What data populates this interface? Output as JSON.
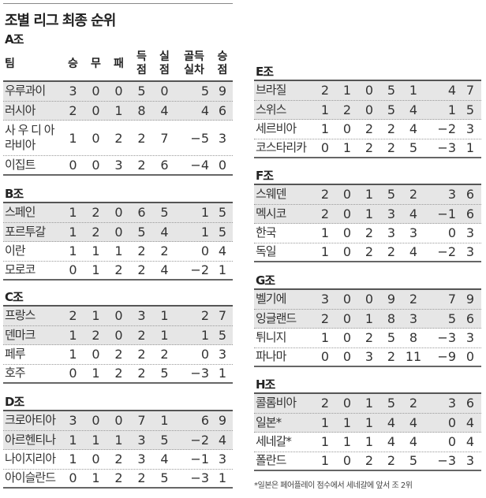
{
  "title": "조별 리그 최종 순위",
  "columns": [
    "팀",
    "승",
    "무",
    "패",
    "득\n점",
    "실\n점",
    "골득\n실차",
    "승\n점"
  ],
  "groups": [
    {
      "label": "A조",
      "teams": [
        [
          "우루과이",
          "3",
          "0",
          "0",
          "5",
          "0",
          "5",
          "9"
        ],
        [
          "러시아",
          "2",
          "0",
          "1",
          "8",
          "4",
          "4",
          "6"
        ],
        [
          "사 우 디 아\n라비아",
          "1",
          "0",
          "2",
          "2",
          "7",
          "−5",
          "3"
        ],
        [
          "이집트",
          "0",
          "0",
          "3",
          "2",
          "6",
          "−4",
          "0"
        ]
      ]
    },
    {
      "label": "B조",
      "teams": [
        [
          "스페인",
          "1",
          "2",
          "0",
          "6",
          "5",
          "1",
          "5"
        ],
        [
          "포르투갈",
          "1",
          "2",
          "0",
          "5",
          "4",
          "1",
          "5"
        ],
        [
          "이란",
          "1",
          "1",
          "1",
          "2",
          "2",
          "0",
          "4"
        ],
        [
          "모로코",
          "0",
          "1",
          "2",
          "2",
          "4",
          "−2",
          "1"
        ]
      ]
    },
    {
      "label": "C조",
      "teams": [
        [
          "프랑스",
          "2",
          "1",
          "0",
          "3",
          "1",
          "2",
          "7"
        ],
        [
          "덴마크",
          "1",
          "2",
          "0",
          "2",
          "1",
          "1",
          "5"
        ],
        [
          "페루",
          "1",
          "0",
          "2",
          "2",
          "2",
          "0",
          "3"
        ],
        [
          "호주",
          "0",
          "1",
          "2",
          "2",
          "5",
          "−3",
          "1"
        ]
      ]
    },
    {
      "label": "D조",
      "teams": [
        [
          "크로아티아",
          "3",
          "0",
          "0",
          "7",
          "1",
          "6",
          "9"
        ],
        [
          "아르헨티나",
          "1",
          "1",
          "1",
          "3",
          "5",
          "−2",
          "4"
        ],
        [
          "나이지리아",
          "1",
          "0",
          "2",
          "3",
          "4",
          "−1",
          "3"
        ],
        [
          "아이슬란드",
          "0",
          "1",
          "2",
          "2",
          "5",
          "−3",
          "1"
        ]
      ]
    },
    {
      "label": "E조",
      "teams": [
        [
          "브라질",
          "2",
          "1",
          "0",
          "5",
          "1",
          "4",
          "7"
        ],
        [
          "스위스",
          "1",
          "2",
          "0",
          "5",
          "4",
          "1",
          "5"
        ],
        [
          "세르비아",
          "1",
          "0",
          "2",
          "2",
          "4",
          "−2",
          "3"
        ],
        [
          "코스타리카",
          "0",
          "1",
          "2",
          "2",
          "5",
          "−3",
          "1"
        ]
      ]
    },
    {
      "label": "F조",
      "teams": [
        [
          "스웨덴",
          "2",
          "0",
          "1",
          "5",
          "2",
          "3",
          "6"
        ],
        [
          "멕시코",
          "2",
          "0",
          "1",
          "3",
          "4",
          "−1",
          "6"
        ],
        [
          "한국",
          "1",
          "0",
          "2",
          "3",
          "3",
          "0",
          "3"
        ],
        [
          "독일",
          "1",
          "0",
          "2",
          "2",
          "4",
          "−2",
          "3"
        ]
      ]
    },
    {
      "label": "G조",
      "teams": [
        [
          "벨기에",
          "3",
          "0",
          "0",
          "9",
          "2",
          "7",
          "9"
        ],
        [
          "잉글랜드",
          "2",
          "0",
          "1",
          "8",
          "3",
          "5",
          "6"
        ],
        [
          "튀니지",
          "1",
          "0",
          "2",
          "5",
          "8",
          "−3",
          "3"
        ],
        [
          "파나마",
          "0",
          "0",
          "3",
          "2",
          "11",
          "−9",
          "0"
        ]
      ]
    },
    {
      "label": "H조",
      "teams": [
        [
          "콜롬비아",
          "2",
          "0",
          "1",
          "5",
          "2",
          "3",
          "6"
        ],
        [
          "일본*",
          "1",
          "1",
          "1",
          "4",
          "4",
          "0",
          "4"
        ],
        [
          "세네갈*",
          "1",
          "1",
          "1",
          "4",
          "4",
          "0",
          "4"
        ],
        [
          "폴란드",
          "1",
          "0",
          "2",
          "2",
          "5",
          "−3",
          "3"
        ]
      ]
    }
  ],
  "footnote": "*일본은 페어플레이 점수에서 세네갈에 앞서 조 2위",
  "colors": {
    "shade": "#e6e6e6",
    "rule": "#555555"
  }
}
